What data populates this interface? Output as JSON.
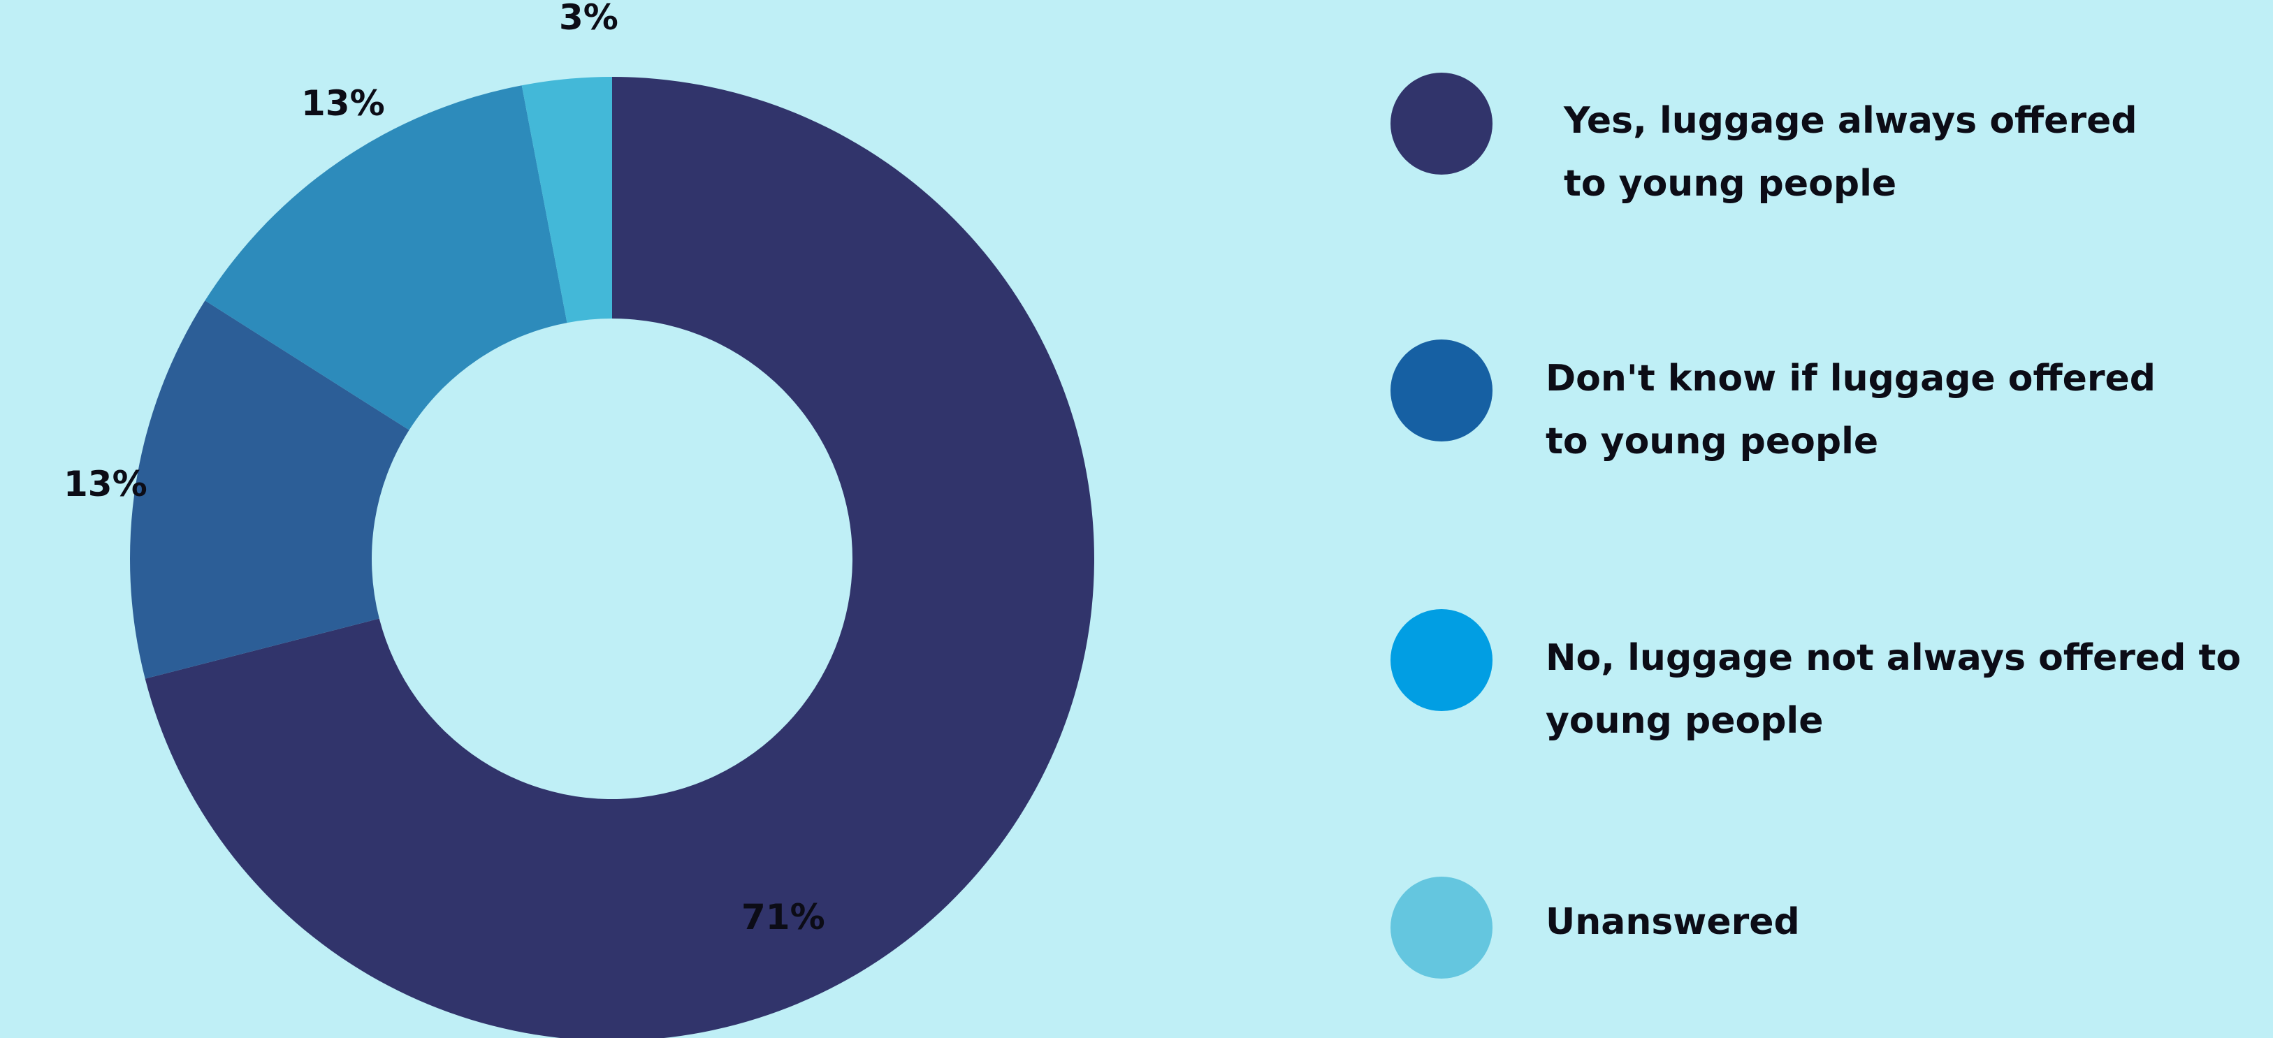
{
  "chart_data": {
    "type": "pie",
    "variant": "donut",
    "title": "",
    "slices": [
      {
        "label": "Yes, luggage always offered to young people",
        "value": 71,
        "display": "71%",
        "color": "#31346b"
      },
      {
        "label": "Don't know if luggage offered to young people",
        "value": 13,
        "display": "13%",
        "color": "#2c5e97"
      },
      {
        "label": "No, luggage not always offered to young people",
        "value": 13,
        "display": "13%",
        "color": "#2d8bbb"
      },
      {
        "label": "Unanswered",
        "value": 3,
        "display": "3%",
        "color": "#43b8d8"
      }
    ],
    "legend": {
      "placement": "right",
      "items": [
        {
          "label_line1": "Yes, luggage always offered",
          "label_line2": "to young people",
          "color": "#31346b"
        },
        {
          "label_line1": "Don't know if luggage offered",
          "label_line2": "to young people",
          "color": "#1660a3"
        },
        {
          "label_line1": "No, luggage not always offered to",
          "label_line2": "young people",
          "color": "#019ee3"
        },
        {
          "label_line1": "Unanswered",
          "label_line2": "",
          "color": "#64c6df"
        }
      ]
    }
  },
  "colors": {
    "background": "#bfeff6",
    "text": "#0c0c16"
  }
}
